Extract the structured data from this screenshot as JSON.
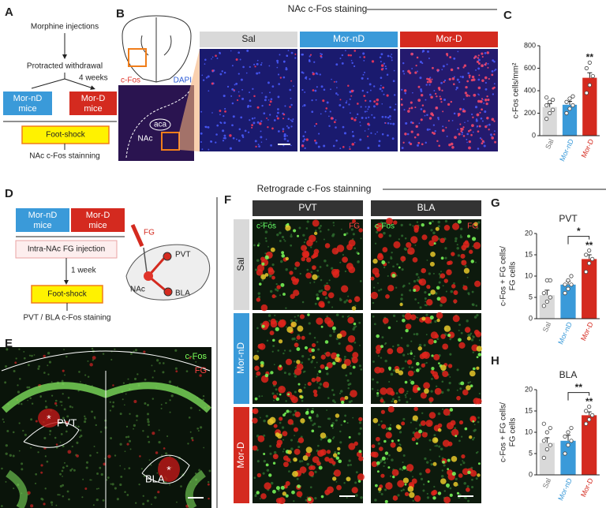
{
  "panel_labels": [
    "A",
    "B",
    "C",
    "D",
    "E",
    "F",
    "G",
    "H"
  ],
  "header_top": "NAc c-Fos staining",
  "header_bottom": "Retrograde c-Fos stainning",
  "panel_a": {
    "step1": "Morphine injections",
    "step2": "Protracted withdrawal",
    "interval": "4 weeks",
    "group1": [
      "Mor-nD",
      "mice"
    ],
    "group2": [
      "Mor-D",
      "mice"
    ],
    "step3": "Foot-shock",
    "step4": "NAc c-Fos stainning"
  },
  "panel_b": {
    "stain1": "c-Fos",
    "stain2": "DAPI",
    "region1": "aca",
    "region2": "NAc",
    "groups": [
      "Sal",
      "Mor-nD",
      "Mor-D"
    ]
  },
  "panel_d": {
    "group1": [
      "Mor-nD",
      "mice"
    ],
    "group2": [
      "Mor-D",
      "mice"
    ],
    "step1": "Intra-NAc FG injection",
    "interval": "1 week",
    "step2": "Foot-shock",
    "step3": "PVT / BLA c-Fos staining",
    "tracer": "FG",
    "regions": [
      "PVT",
      "NAc",
      "BLA"
    ]
  },
  "panel_e": {
    "stain1": "c-Fos",
    "stain2": "FG",
    "regions": [
      "PVT",
      "BLA"
    ],
    "markers": [
      "*",
      "*"
    ]
  },
  "panel_f": {
    "columns": [
      "PVT",
      "BLA"
    ],
    "rows": [
      "Sal",
      "Mor-nD",
      "Mor-D"
    ],
    "stain1": "c-Fos",
    "stain2": "FG"
  },
  "chart_data": [
    {
      "type": "bar",
      "ylabel": [
        "c-Fos cells/mm²"
      ],
      "categories": [
        "Sal",
        "Mor-nD",
        "Mor-D"
      ],
      "colors": [
        "#d9d9d9",
        "#3a9ad9",
        "#d42a1f"
      ],
      "values": [
        255,
        275,
        515
      ],
      "errors": [
        30,
        30,
        45
      ],
      "points": [
        [
          150,
          200,
          230,
          270,
          300,
          320,
          340
        ],
        [
          200,
          240,
          270,
          300,
          330,
          350
        ],
        [
          380,
          450,
          530,
          600,
          650
        ]
      ],
      "ylim": [
        0,
        800
      ],
      "yticks": [
        0,
        200,
        400,
        600,
        800
      ],
      "annotations": [
        "**"
      ]
    },
    {
      "type": "bar",
      "title": "PVT",
      "ylabel": [
        "c-Fos + FG cells/",
        "FG cells"
      ],
      "categories": [
        "Sal",
        "Mor-nD",
        "Mor-D"
      ],
      "colors": [
        "#d9d9d9",
        "#3a9ad9",
        "#d42a1f"
      ],
      "values": [
        5.5,
        8,
        14
      ],
      "errors": [
        1.2,
        0.8,
        1
      ],
      "points": [
        [
          3,
          4,
          5,
          6,
          9,
          9
        ],
        [
          6,
          7,
          8,
          8,
          9,
          10
        ],
        [
          11,
          13,
          14,
          15,
          16
        ]
      ],
      "ylim": [
        0,
        20
      ],
      "yticks": [
        0,
        5,
        10,
        15,
        20
      ],
      "annotations": [
        "*",
        "**"
      ]
    },
    {
      "type": "bar",
      "title": "BLA",
      "ylabel": [
        "c-Fos + FG cells/",
        "FG cells"
      ],
      "categories": [
        "Sal",
        "Mor-nD",
        "Mor-D"
      ],
      "colors": [
        "#d9d9d9",
        "#3a9ad9",
        "#d42a1f"
      ],
      "values": [
        7.5,
        8,
        14
      ],
      "errors": [
        1.2,
        1.3,
        0.8
      ],
      "points": [
        [
          4,
          6,
          7,
          8,
          10,
          11,
          12
        ],
        [
          5,
          7,
          8,
          9,
          10,
          11
        ],
        [
          12,
          13,
          14,
          15,
          16
        ]
      ],
      "ylim": [
        0,
        20
      ],
      "yticks": [
        0,
        5,
        10,
        15,
        20
      ],
      "annotations": [
        "**",
        "**"
      ]
    }
  ]
}
